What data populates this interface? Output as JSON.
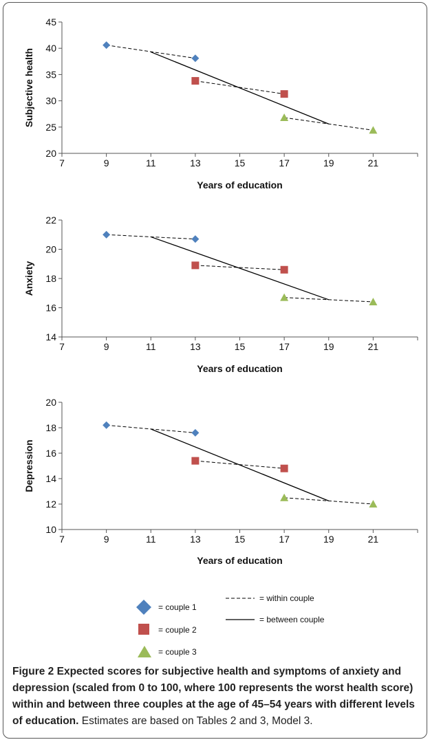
{
  "caption": {
    "label": "Figure 2",
    "title": "Expected scores for subjective health and symptoms of anxiety and depression (scaled from 0 to 100, where 100 represents the worst health score) within and between three couples at the age of 45–54 years with different levels of education.",
    "note": "Estimates are based on Tables 2 and 3, Model 3."
  },
  "legend": {
    "couple1": "= couple 1",
    "couple2": "= couple 2",
    "couple3": "= couple 3",
    "within": "= within couple",
    "between": "= between couple"
  },
  "colors": {
    "couple1": "#4f81bd",
    "couple2": "#c0504d",
    "couple3": "#9bbb59",
    "line": "#000000"
  },
  "chart_data": [
    {
      "type": "line",
      "xlabel": "Years of education",
      "ylabel": "Subjective health",
      "xlim": [
        7,
        23
      ],
      "xticks": [
        7,
        9,
        11,
        13,
        15,
        17,
        19,
        21
      ],
      "ylim": [
        20,
        45
      ],
      "yticks": [
        20,
        25,
        30,
        35,
        40,
        45
      ],
      "grid": false,
      "points": [
        {
          "series": "couple 1",
          "marker": "diamond",
          "x": 9,
          "y": 40.6
        },
        {
          "series": "couple 1",
          "marker": "diamond",
          "x": 13,
          "y": 38.1
        },
        {
          "series": "couple 2",
          "marker": "square",
          "x": 13,
          "y": 33.8
        },
        {
          "series": "couple 2",
          "marker": "square",
          "x": 17,
          "y": 31.3
        },
        {
          "series": "couple 3",
          "marker": "triangle",
          "x": 17,
          "y": 26.8
        },
        {
          "series": "couple 3",
          "marker": "triangle",
          "x": 21,
          "y": 24.4
        }
      ],
      "lines": [
        {
          "series": "within couple",
          "style": "dashed",
          "x": [
            9,
            13
          ],
          "y": [
            40.6,
            38.1
          ]
        },
        {
          "series": "within couple",
          "style": "dashed",
          "x": [
            13,
            17
          ],
          "y": [
            33.8,
            31.3
          ]
        },
        {
          "series": "within couple",
          "style": "dashed",
          "x": [
            17,
            21
          ],
          "y": [
            26.8,
            24.4
          ]
        },
        {
          "series": "between couple",
          "style": "solid",
          "x": [
            11,
            19
          ],
          "y": [
            39.3,
            25.6
          ]
        }
      ]
    },
    {
      "type": "line",
      "xlabel": "Years of education",
      "ylabel": "Anxiety",
      "xlim": [
        7,
        23
      ],
      "xticks": [
        7,
        9,
        11,
        13,
        15,
        17,
        19,
        21
      ],
      "ylim": [
        14,
        22
      ],
      "yticks": [
        14,
        16,
        18,
        20,
        22
      ],
      "grid": false,
      "points": [
        {
          "series": "couple 1",
          "marker": "diamond",
          "x": 9,
          "y": 21.0
        },
        {
          "series": "couple 1",
          "marker": "diamond",
          "x": 13,
          "y": 20.7
        },
        {
          "series": "couple 2",
          "marker": "square",
          "x": 13,
          "y": 18.9
        },
        {
          "series": "couple 2",
          "marker": "square",
          "x": 17,
          "y": 18.6
        },
        {
          "series": "couple 3",
          "marker": "triangle",
          "x": 17,
          "y": 16.7
        },
        {
          "series": "couple 3",
          "marker": "triangle",
          "x": 21,
          "y": 16.4
        }
      ],
      "lines": [
        {
          "series": "within couple",
          "style": "dashed",
          "x": [
            9,
            13
          ],
          "y": [
            21.0,
            20.7
          ]
        },
        {
          "series": "within couple",
          "style": "dashed",
          "x": [
            13,
            17
          ],
          "y": [
            18.9,
            18.6
          ]
        },
        {
          "series": "within couple",
          "style": "dashed",
          "x": [
            17,
            21
          ],
          "y": [
            16.7,
            16.4
          ]
        },
        {
          "series": "between couple",
          "style": "solid",
          "x": [
            11,
            19
          ],
          "y": [
            20.85,
            16.55
          ]
        }
      ]
    },
    {
      "type": "line",
      "xlabel": "Years of education",
      "ylabel": "Depression",
      "xlim": [
        7,
        23
      ],
      "xticks": [
        7,
        9,
        11,
        13,
        15,
        17,
        19,
        21
      ],
      "ylim": [
        10,
        20
      ],
      "yticks": [
        10,
        12,
        14,
        16,
        18,
        20
      ],
      "grid": false,
      "points": [
        {
          "series": "couple 1",
          "marker": "diamond",
          "x": 9,
          "y": 18.2
        },
        {
          "series": "couple 1",
          "marker": "diamond",
          "x": 13,
          "y": 17.6
        },
        {
          "series": "couple 2",
          "marker": "square",
          "x": 13,
          "y": 15.4
        },
        {
          "series": "couple 2",
          "marker": "square",
          "x": 17,
          "y": 14.8
        },
        {
          "series": "couple 3",
          "marker": "triangle",
          "x": 17,
          "y": 12.5
        },
        {
          "series": "couple 3",
          "marker": "triangle",
          "x": 21,
          "y": 12.0
        }
      ],
      "lines": [
        {
          "series": "within couple",
          "style": "dashed",
          "x": [
            9,
            13
          ],
          "y": [
            18.2,
            17.6
          ]
        },
        {
          "series": "within couple",
          "style": "dashed",
          "x": [
            13,
            17
          ],
          "y": [
            15.4,
            14.8
          ]
        },
        {
          "series": "within couple",
          "style": "dashed",
          "x": [
            17,
            21
          ],
          "y": [
            12.5,
            12.0
          ]
        },
        {
          "series": "between couple",
          "style": "solid",
          "x": [
            11,
            19
          ],
          "y": [
            17.9,
            12.25
          ]
        }
      ]
    }
  ]
}
